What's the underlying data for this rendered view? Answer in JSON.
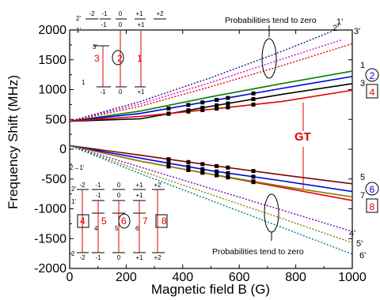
{
  "chart_data": {
    "type": "line",
    "xlabel": "Magnetic field B (G)",
    "ylabel": "Frequency Shift (MHz)",
    "xlim": [
      0,
      1000
    ],
    "ylim": [
      -2000,
      2000
    ],
    "xticks": [
      "0",
      "200",
      "400",
      "600",
      "800",
      "1000"
    ],
    "yticks": [
      "2000",
      "1500",
      "1000",
      "500",
      "0",
      "-500",
      "-1000",
      "-1500",
      "-2000"
    ],
    "series": [
      {
        "name": "1'",
        "color": "#1a1a8c",
        "style": "dotted",
        "x": [
          0,
          250,
          500,
          750,
          930
        ],
        "y": [
          470,
          800,
          1200,
          1640,
          1980
        ]
      },
      {
        "name": "2'",
        "color": "#e000e0",
        "style": "dotted",
        "x": [
          0,
          250,
          500,
          750,
          960
        ],
        "y": [
          470,
          760,
          1120,
          1510,
          1830
        ]
      },
      {
        "name": "3'",
        "color": "#e00000",
        "style": "dotted",
        "x": [
          0,
          250,
          500,
          750,
          1000
        ],
        "y": [
          470,
          720,
          1050,
          1400,
          1770
        ]
      },
      {
        "name": "1",
        "color": "#008000",
        "style": "solid",
        "x": [
          0,
          250,
          500,
          750,
          1000
        ],
        "y": [
          470,
          640,
          880,
          1100,
          1310
        ]
      },
      {
        "name": "2",
        "color": "#0000e0",
        "style": "solid",
        "x": [
          0,
          250,
          500,
          750,
          1000
        ],
        "y": [
          470,
          600,
          810,
          1020,
          1220
        ]
      },
      {
        "name": "3",
        "color": "#000000",
        "style": "solid",
        "x": [
          0,
          250,
          500,
          750,
          1000
        ],
        "y": [
          470,
          510,
          720,
          920,
          1100
        ]
      },
      {
        "name": "4",
        "color": "#e00000",
        "style": "solid",
        "x": [
          0,
          250,
          500,
          750,
          1000
        ],
        "y": [
          470,
          550,
          670,
          800,
          990
        ]
      },
      {
        "name": "8",
        "color": "#e00000",
        "style": "solid",
        "x": [
          0,
          250,
          500,
          750,
          1000
        ],
        "y": [
          60,
          -200,
          -420,
          -640,
          -860
        ]
      },
      {
        "name": "5",
        "color": "#800000",
        "style": "solid",
        "x": [
          0,
          250,
          500,
          750,
          1000
        ],
        "y": [
          60,
          -100,
          -270,
          -430,
          -580
        ]
      },
      {
        "name": "6",
        "color": "#0000e0",
        "style": "solid",
        "x": [
          0,
          250,
          500,
          750,
          1000
        ],
        "y": [
          60,
          -150,
          -360,
          -530,
          -710
        ]
      },
      {
        "name": "7",
        "color": "#808000",
        "style": "solid",
        "x": [
          0,
          250,
          500,
          750,
          1000
        ],
        "y": [
          60,
          -200,
          -420,
          -620,
          -800
        ]
      },
      {
        "name": "4'",
        "color": "#8000c0",
        "style": "dotted",
        "x": [
          0,
          250,
          500,
          750,
          1000
        ],
        "y": [
          60,
          -300,
          -660,
          -1020,
          -1380
        ]
      },
      {
        "name": "5'",
        "color": "#808000",
        "style": "dotted",
        "x": [
          0,
          250,
          500,
          750,
          1000
        ],
        "y": [
          60,
          -360,
          -760,
          -1160,
          -1570
        ]
      },
      {
        "name": "6'",
        "color": "#008080",
        "style": "dotted",
        "x": [
          0,
          250,
          500,
          750,
          1000
        ],
        "y": [
          60,
          -410,
          -860,
          -1310,
          -1760
        ]
      }
    ],
    "markers": {
      "x": [
        350,
        420,
        470,
        520,
        560,
        650
      ],
      "upper_series": [
        "2",
        "3",
        "4"
      ],
      "lower_series": [
        "5",
        "6",
        "7",
        "8"
      ]
    },
    "annotations": {
      "top_text": "Probabilities tend to zero",
      "bottom_text": "Probabilities tend to zero",
      "gt": "GT",
      "transition": "2→1'"
    },
    "right_labels": {
      "upper_primed": [
        "1'",
        "2'",
        "3'"
      ],
      "upper": [
        "1",
        "2",
        "3",
        "4"
      ],
      "lower": [
        "5",
        "6",
        "7",
        "8"
      ],
      "lower_primed": [
        "4'",
        "5'",
        "6'"
      ]
    },
    "inset_top": {
      "top_row": [
        "-2",
        "-1",
        "0",
        "+1",
        "+2"
      ],
      "upper_levels": [
        "2'",
        "1'"
      ],
      "mid_primes": [
        "-1",
        "3'",
        "0",
        "+1"
      ],
      "transitions": [
        "3",
        "2",
        "1"
      ],
      "bottom_row": [
        "-1",
        "0",
        "+1"
      ],
      "ground": "1"
    },
    "inset_bottom": {
      "top_row": [
        "-2",
        "-1",
        "0",
        "+1",
        "+2"
      ],
      "mid_row": [
        "-1",
        "0",
        "+1"
      ],
      "left_levels": [
        "2'",
        "1'"
      ],
      "primes": [
        "4'",
        "5'",
        "6'"
      ],
      "transitions": [
        "4",
        "5",
        "6",
        "7",
        "8"
      ],
      "bottom_row": [
        "-2",
        "-1",
        "0",
        "+1",
        "+2"
      ],
      "ground": "2"
    }
  }
}
